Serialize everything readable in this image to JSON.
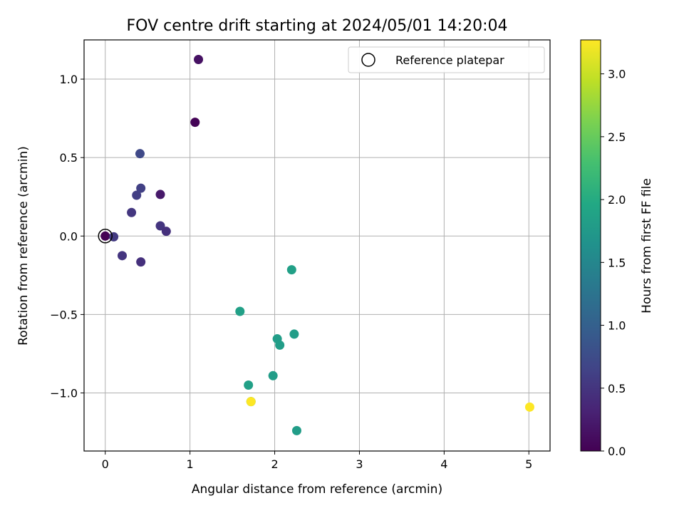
{
  "chart_data": {
    "type": "scatter",
    "title": "FOV centre drift starting at 2024/05/01 14:20:04",
    "xlabel": "Angular distance from reference (arcmin)",
    "ylabel": "Rotation from reference (arcmin)",
    "xlim": [
      -0.25,
      5.25
    ],
    "ylim": [
      -1.37,
      1.25
    ],
    "xticks": [
      0,
      1,
      2,
      3,
      4,
      5
    ],
    "xtick_labels": [
      "0",
      "1",
      "2",
      "3",
      "4",
      "5"
    ],
    "yticks": [
      -1.0,
      -0.5,
      0.0,
      0.5,
      1.0
    ],
    "ytick_labels": [
      "−1.0",
      "−0.5",
      "0.0",
      "0.5",
      "1.0"
    ],
    "grid": true,
    "legend": {
      "placement": "top-right",
      "entries": [
        "Reference platepar"
      ]
    },
    "colorbar": {
      "label": "Hours from first FF file",
      "range": [
        0.0,
        3.27
      ],
      "ticks": [
        0.0,
        0.5,
        1.0,
        1.5,
        2.0,
        2.5,
        3.0
      ],
      "tick_labels": [
        "0.0",
        "0.5",
        "1.0",
        "1.5",
        "2.0",
        "2.5",
        "3.0"
      ],
      "colormap": "viridis"
    },
    "reference_point": {
      "x": 0.0,
      "y": 0.0
    },
    "points": [
      {
        "x": 0.0,
        "y": 0.0,
        "hours": 0.0
      },
      {
        "x": 1.06,
        "y": 0.725,
        "hours": 0.02
      },
      {
        "x": 1.1,
        "y": 1.125,
        "hours": 0.15
      },
      {
        "x": 0.65,
        "y": 0.265,
        "hours": 0.22
      },
      {
        "x": 0.1,
        "y": -0.005,
        "hours": 0.55
      },
      {
        "x": 0.2,
        "y": -0.125,
        "hours": 0.5
      },
      {
        "x": 0.31,
        "y": 0.15,
        "hours": 0.52
      },
      {
        "x": 0.37,
        "y": 0.26,
        "hours": 0.6
      },
      {
        "x": 0.41,
        "y": 0.525,
        "hours": 0.72
      },
      {
        "x": 0.42,
        "y": 0.305,
        "hours": 0.62
      },
      {
        "x": 0.42,
        "y": -0.165,
        "hours": 0.45
      },
      {
        "x": 0.65,
        "y": 0.065,
        "hours": 0.5
      },
      {
        "x": 0.72,
        "y": 0.03,
        "hours": 0.45
      },
      {
        "x": 1.59,
        "y": -0.48,
        "hours": 1.85
      },
      {
        "x": 1.69,
        "y": -0.95,
        "hours": 1.85
      },
      {
        "x": 1.98,
        "y": -0.89,
        "hours": 1.8
      },
      {
        "x": 2.03,
        "y": -0.655,
        "hours": 1.8
      },
      {
        "x": 2.06,
        "y": -0.695,
        "hours": 1.8
      },
      {
        "x": 2.2,
        "y": -0.215,
        "hours": 1.85
      },
      {
        "x": 2.23,
        "y": -0.625,
        "hours": 1.8
      },
      {
        "x": 2.26,
        "y": -1.24,
        "hours": 1.8
      },
      {
        "x": 1.72,
        "y": -1.055,
        "hours": 1.85
      },
      {
        "x": 1.72,
        "y": -1.055,
        "hours": 3.27
      },
      {
        "x": 5.01,
        "y": -1.09,
        "hours": 3.27
      }
    ]
  }
}
